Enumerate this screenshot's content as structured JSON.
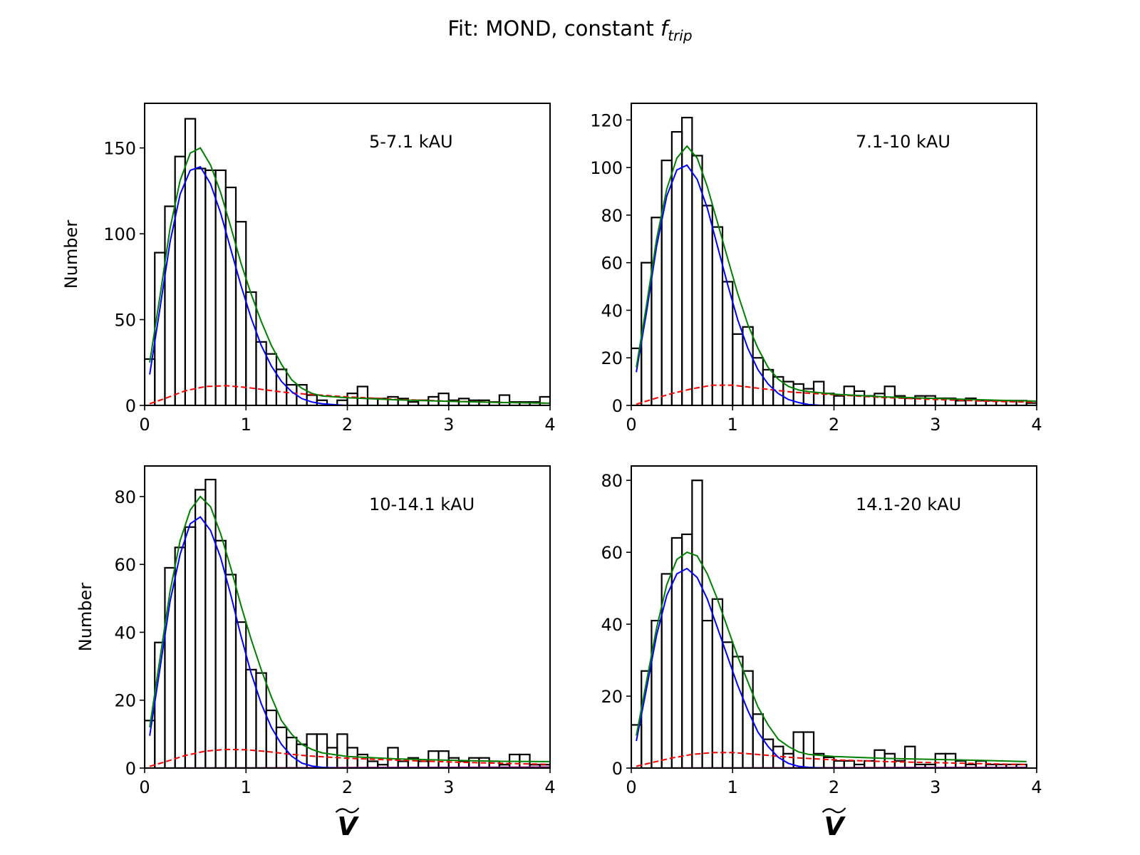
{
  "chart_data": {
    "title": "Fit: MOND, constant f",
    "title_subscript": "trip",
    "type": "bar",
    "x_symbol": "V",
    "colors": {
      "histogram": "#000000",
      "total_fit": "#008000",
      "bound_fit": "#0000ff",
      "background_fit": "#ff0000",
      "extra_fit": "#800080"
    },
    "panels": [
      {
        "label": "5-7.1 kAU",
        "ylabel": "Number",
        "xlim": [
          0,
          4
        ],
        "ylim": [
          0,
          176
        ],
        "xticks": [
          "0",
          "1",
          "2",
          "3",
          "4"
        ],
        "yticks": [
          0,
          50,
          100,
          150
        ],
        "bin_width": 0.1,
        "counts": [
          27,
          89,
          116,
          145,
          167,
          138,
          137,
          137,
          127,
          107,
          66,
          37,
          30,
          21,
          12,
          12,
          6,
          3,
          0,
          3,
          7,
          11,
          4,
          4,
          5,
          4,
          2,
          3,
          5,
          7,
          3,
          4,
          3,
          3,
          2,
          6,
          2,
          2,
          2,
          5
        ],
        "total_fit": [
          [
            0.05,
            25
          ],
          [
            0.15,
            63
          ],
          [
            0.25,
            103
          ],
          [
            0.35,
            131
          ],
          [
            0.45,
            147
          ],
          [
            0.55,
            150
          ],
          [
            0.65,
            140
          ],
          [
            0.75,
            124
          ],
          [
            0.85,
            104
          ],
          [
            0.95,
            83
          ],
          [
            1.05,
            65
          ],
          [
            1.15,
            49
          ],
          [
            1.25,
            35
          ],
          [
            1.35,
            24
          ],
          [
            1.45,
            15
          ],
          [
            1.55,
            10
          ],
          [
            1.65,
            7
          ],
          [
            1.75,
            5.5
          ],
          [
            2.0,
            4.5
          ],
          [
            2.5,
            3.2
          ],
          [
            3.0,
            2.4
          ],
          [
            3.5,
            1.7
          ],
          [
            4.0,
            1.3
          ]
        ],
        "bound_fit": [
          [
            0.05,
            18
          ],
          [
            0.15,
            56
          ],
          [
            0.25,
            95
          ],
          [
            0.35,
            123
          ],
          [
            0.45,
            137
          ],
          [
            0.55,
            139
          ],
          [
            0.65,
            129
          ],
          [
            0.75,
            112
          ],
          [
            0.85,
            91
          ],
          [
            0.95,
            70
          ],
          [
            1.05,
            51
          ],
          [
            1.15,
            35
          ],
          [
            1.25,
            23
          ],
          [
            1.35,
            14
          ],
          [
            1.45,
            8
          ],
          [
            1.55,
            4
          ],
          [
            1.65,
            2
          ],
          [
            1.75,
            1
          ],
          [
            1.9,
            0.3
          ],
          [
            2.0,
            0
          ]
        ],
        "background_fit": [
          [
            0.05,
            1
          ],
          [
            0.2,
            4
          ],
          [
            0.4,
            8.5
          ],
          [
            0.6,
            11
          ],
          [
            0.8,
            11.5
          ],
          [
            1.0,
            10.5
          ],
          [
            1.2,
            9
          ],
          [
            1.4,
            7.5
          ],
          [
            1.6,
            6.5
          ],
          [
            2.0,
            5
          ],
          [
            2.5,
            3.5
          ],
          [
            3.0,
            2.5
          ],
          [
            3.5,
            1.8
          ],
          [
            4.0,
            1.3
          ]
        ],
        "extra_fit": [
          [
            0.05,
            0
          ],
          [
            4.0,
            0
          ]
        ]
      },
      {
        "label": "7.1-10 kAU",
        "ylabel": "",
        "xlim": [
          0,
          4
        ],
        "ylim": [
          0,
          127
        ],
        "xticks": [
          "0",
          "1",
          "2",
          "3",
          "4"
        ],
        "yticks": [
          0,
          20,
          40,
          60,
          80,
          100,
          120
        ],
        "bin_width": 0.1,
        "counts": [
          24,
          60,
          79,
          103,
          115,
          121,
          105,
          84,
          75,
          52,
          30,
          33,
          20,
          15,
          12,
          10,
          9,
          7,
          10,
          5,
          4,
          8,
          6,
          4,
          5,
          8,
          4,
          3,
          4,
          4,
          3,
          3,
          2,
          3,
          2,
          2,
          2,
          2,
          2,
          1
        ],
        "total_fit": [
          [
            0.05,
            16
          ],
          [
            0.15,
            42
          ],
          [
            0.25,
            70
          ],
          [
            0.35,
            91
          ],
          [
            0.45,
            104
          ],
          [
            0.55,
            109
          ],
          [
            0.65,
            104
          ],
          [
            0.75,
            92
          ],
          [
            0.85,
            77
          ],
          [
            0.95,
            62
          ],
          [
            1.05,
            47
          ],
          [
            1.15,
            34
          ],
          [
            1.25,
            24
          ],
          [
            1.35,
            16
          ],
          [
            1.45,
            11
          ],
          [
            1.55,
            8
          ],
          [
            1.65,
            6.5
          ],
          [
            1.75,
            5.8
          ],
          [
            2.0,
            4.7
          ],
          [
            2.5,
            3.6
          ],
          [
            3.0,
            2.9
          ],
          [
            3.5,
            2.3
          ],
          [
            4.0,
            1.8
          ]
        ],
        "bound_fit": [
          [
            0.05,
            14
          ],
          [
            0.15,
            39
          ],
          [
            0.25,
            67
          ],
          [
            0.35,
            88
          ],
          [
            0.45,
            99
          ],
          [
            0.55,
            101
          ],
          [
            0.65,
            95
          ],
          [
            0.75,
            83
          ],
          [
            0.85,
            67
          ],
          [
            0.95,
            51
          ],
          [
            1.05,
            36
          ],
          [
            1.15,
            24
          ],
          [
            1.25,
            15
          ],
          [
            1.35,
            9
          ],
          [
            1.45,
            5
          ],
          [
            1.55,
            2.5
          ],
          [
            1.65,
            1.2
          ],
          [
            1.75,
            0.4
          ],
          [
            1.85,
            0.1
          ],
          [
            2.0,
            0
          ]
        ],
        "background_fit": [
          [
            0.05,
            0.5
          ],
          [
            0.2,
            2.5
          ],
          [
            0.4,
            5
          ],
          [
            0.6,
            7
          ],
          [
            0.8,
            8.5
          ],
          [
            1.0,
            8.5
          ],
          [
            1.2,
            7.5
          ],
          [
            1.4,
            6.5
          ],
          [
            1.6,
            5.5
          ],
          [
            2.0,
            4.5
          ],
          [
            2.5,
            3.3
          ],
          [
            3.0,
            2.5
          ],
          [
            3.5,
            1.8
          ],
          [
            4.0,
            1.3
          ]
        ],
        "extra_fit": [
          [
            0.05,
            0
          ],
          [
            4.0,
            0
          ]
        ]
      },
      {
        "label": "10-14.1 kAU",
        "ylabel": "Number",
        "xlim": [
          0,
          4
        ],
        "ylim": [
          0,
          89
        ],
        "xticks": [
          "0",
          "1",
          "2",
          "3",
          "4"
        ],
        "yticks": [
          0,
          20,
          40,
          60,
          80
        ],
        "bin_width": 0.1,
        "counts": [
          14,
          37,
          59,
          65,
          71,
          82,
          85,
          67,
          57,
          43,
          29,
          28,
          17,
          12,
          9,
          7,
          10,
          10,
          6,
          10,
          6,
          4,
          2,
          1,
          6,
          2,
          3,
          2,
          5,
          5,
          3,
          2,
          3,
          3,
          2,
          1,
          4,
          4,
          1,
          1
        ],
        "total_fit": [
          [
            0.05,
            12
          ],
          [
            0.15,
            32
          ],
          [
            0.25,
            52
          ],
          [
            0.35,
            67
          ],
          [
            0.45,
            76
          ],
          [
            0.55,
            80
          ],
          [
            0.65,
            77
          ],
          [
            0.75,
            69
          ],
          [
            0.85,
            59
          ],
          [
            0.95,
            48
          ],
          [
            1.05,
            38
          ],
          [
            1.15,
            29
          ],
          [
            1.25,
            21
          ],
          [
            1.35,
            14
          ],
          [
            1.45,
            10
          ],
          [
            1.55,
            7
          ],
          [
            1.65,
            5.5
          ],
          [
            1.75,
            4.5
          ],
          [
            2.0,
            3.4
          ],
          [
            2.5,
            2.7
          ],
          [
            3.0,
            2.3
          ],
          [
            3.5,
            2.0
          ],
          [
            4.0,
            1.9
          ]
        ],
        "bound_fit": [
          [
            0.05,
            9.5
          ],
          [
            0.15,
            29
          ],
          [
            0.25,
            49
          ],
          [
            0.35,
            63
          ],
          [
            0.45,
            72
          ],
          [
            0.55,
            74
          ],
          [
            0.65,
            70
          ],
          [
            0.75,
            62
          ],
          [
            0.85,
            51
          ],
          [
            0.95,
            39
          ],
          [
            1.05,
            28
          ],
          [
            1.15,
            19
          ],
          [
            1.25,
            12
          ],
          [
            1.35,
            7
          ],
          [
            1.45,
            3.5
          ],
          [
            1.55,
            1.5
          ],
          [
            1.65,
            0.6
          ],
          [
            1.75,
            0.2
          ],
          [
            1.9,
            0
          ]
        ],
        "background_fit": [
          [
            0.05,
            0.5
          ],
          [
            0.2,
            1.8
          ],
          [
            0.4,
            3.7
          ],
          [
            0.6,
            5
          ],
          [
            0.8,
            5.5
          ],
          [
            1.0,
            5.4
          ],
          [
            1.2,
            4.9
          ],
          [
            1.4,
            4.2
          ],
          [
            1.6,
            3.6
          ],
          [
            2.0,
            2.9
          ],
          [
            2.5,
            2.3
          ],
          [
            3.0,
            1.8
          ],
          [
            3.5,
            1.4
          ],
          [
            4.0,
            1.1
          ]
        ],
        "extra_fit": [
          [
            0.05,
            0
          ],
          [
            4.0,
            0.3
          ]
        ]
      },
      {
        "label": "14.1-20 kAU",
        "ylabel": "",
        "xlim": [
          0,
          4
        ],
        "ylim": [
          0,
          84
        ],
        "xticks": [
          "0",
          "1",
          "2",
          "3",
          "4"
        ],
        "yticks": [
          0,
          20,
          40,
          60,
          80
        ],
        "bin_width": 0.1,
        "counts": [
          12,
          27,
          41,
          54,
          64,
          65,
          80,
          41,
          47,
          35,
          31,
          27,
          15,
          8,
          6,
          4,
          10,
          10,
          4,
          3,
          2,
          2,
          1,
          2,
          5,
          4,
          2,
          6,
          1,
          1,
          4,
          4,
          2,
          1,
          2,
          1,
          1,
          1,
          1,
          0
        ],
        "total_fit": [
          [
            0.05,
            9
          ],
          [
            0.15,
            24
          ],
          [
            0.25,
            39
          ],
          [
            0.35,
            51
          ],
          [
            0.45,
            58
          ],
          [
            0.55,
            60
          ],
          [
            0.65,
            59
          ],
          [
            0.75,
            54
          ],
          [
            0.85,
            47
          ],
          [
            0.95,
            39
          ],
          [
            1.05,
            31
          ],
          [
            1.15,
            24
          ],
          [
            1.25,
            17
          ],
          [
            1.35,
            12
          ],
          [
            1.45,
            8
          ],
          [
            1.55,
            6
          ],
          [
            1.65,
            4.5
          ],
          [
            1.75,
            3.8
          ],
          [
            2.0,
            3.2
          ],
          [
            2.5,
            2.7
          ],
          [
            3.0,
            2.4
          ],
          [
            3.5,
            2.1
          ],
          [
            3.9,
            1.8
          ]
        ],
        "bound_fit": [
          [
            0.05,
            7.5
          ],
          [
            0.15,
            22
          ],
          [
            0.25,
            37
          ],
          [
            0.35,
            48
          ],
          [
            0.45,
            54
          ],
          [
            0.55,
            55.5
          ],
          [
            0.65,
            53
          ],
          [
            0.75,
            47
          ],
          [
            0.85,
            39
          ],
          [
            0.95,
            31
          ],
          [
            1.05,
            23
          ],
          [
            1.15,
            16
          ],
          [
            1.25,
            10
          ],
          [
            1.35,
            6
          ],
          [
            1.45,
            3
          ],
          [
            1.55,
            1.3
          ],
          [
            1.65,
            0.5
          ],
          [
            1.75,
            0.2
          ],
          [
            1.9,
            0
          ]
        ],
        "background_fit": [
          [
            0.05,
            0.5
          ],
          [
            0.2,
            1.5
          ],
          [
            0.4,
            2.8
          ],
          [
            0.6,
            3.8
          ],
          [
            0.8,
            4.3
          ],
          [
            1.0,
            4.3
          ],
          [
            1.2,
            3.9
          ],
          [
            1.4,
            3.4
          ],
          [
            1.6,
            2.9
          ],
          [
            2.0,
            2.3
          ],
          [
            2.5,
            1.8
          ],
          [
            3.0,
            1.5
          ],
          [
            3.5,
            1.2
          ],
          [
            3.9,
            1.0
          ]
        ],
        "extra_fit": [
          [
            0.05,
            0
          ],
          [
            3.9,
            0.2
          ]
        ]
      }
    ]
  }
}
